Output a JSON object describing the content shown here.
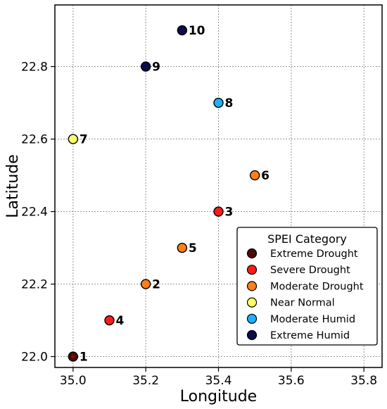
{
  "chart_data": {
    "type": "scatter",
    "xlabel": "Longitude",
    "ylabel": "Latitude",
    "xlim": [
      34.95,
      35.85
    ],
    "ylim": [
      21.97,
      22.97
    ],
    "xticks": [
      "35.0",
      "35.2",
      "35.4",
      "35.6",
      "35.8"
    ],
    "yticks": [
      "22.0",
      "22.2",
      "22.4",
      "22.6",
      "22.8"
    ],
    "grid": true,
    "legend": {
      "title": "SPEI Category",
      "placement": "lower-right",
      "entries": [
        {
          "label": "Extreme Drought",
          "color": "#4a0c0c"
        },
        {
          "label": "Severe Drought",
          "color": "#ff1a1a"
        },
        {
          "label": "Moderate Drought",
          "color": "#ff7f1a"
        },
        {
          "label": "Near Normal",
          "color": "#ffff66"
        },
        {
          "label": "Moderate Humid",
          "color": "#1ab2ff"
        },
        {
          "label": "Extreme Humid",
          "color": "#0c0c4a"
        }
      ]
    },
    "points": [
      {
        "id": "1",
        "x": 35.0,
        "y": 22.0,
        "category": "Extreme Drought"
      },
      {
        "id": "2",
        "x": 35.2,
        "y": 22.2,
        "category": "Moderate Drought"
      },
      {
        "id": "3",
        "x": 35.4,
        "y": 22.4,
        "category": "Severe Drought"
      },
      {
        "id": "4",
        "x": 35.1,
        "y": 22.1,
        "category": "Severe Drought"
      },
      {
        "id": "5",
        "x": 35.3,
        "y": 22.3,
        "category": "Moderate Drought"
      },
      {
        "id": "6",
        "x": 35.5,
        "y": 22.5,
        "category": "Moderate Drought"
      },
      {
        "id": "7",
        "x": 35.0,
        "y": 22.6,
        "category": "Near Normal"
      },
      {
        "id": "8",
        "x": 35.4,
        "y": 22.7,
        "category": "Moderate Humid"
      },
      {
        "id": "9",
        "x": 35.2,
        "y": 22.8,
        "category": "Extreme Humid"
      },
      {
        "id": "10",
        "x": 35.3,
        "y": 22.9,
        "category": "Extreme Humid"
      }
    ]
  }
}
